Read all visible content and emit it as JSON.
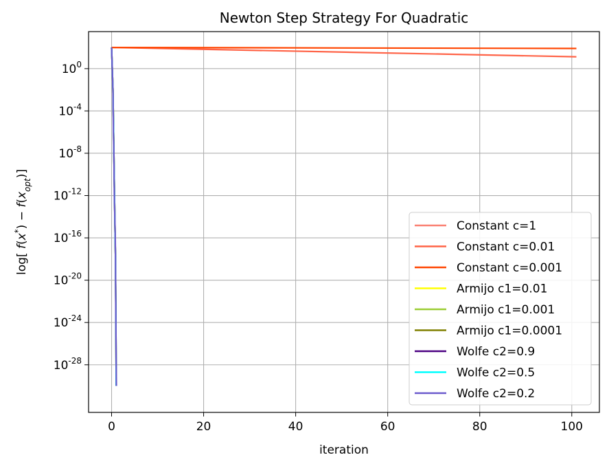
{
  "chart_data": {
    "type": "line",
    "title": "Newton Step Strategy For Quadratic",
    "xlabel": "iteration",
    "ylabel": "log[ f(x*) − f(x_opt)]",
    "yscale": "log",
    "xlim": [
      -5,
      106
    ],
    "ylim_log10": [
      -32.5,
      3.5
    ],
    "xticks": [
      0,
      20,
      40,
      60,
      80,
      100
    ],
    "yticks_exponent": [
      0,
      -4,
      -8,
      -12,
      -16,
      -20,
      -24,
      -28
    ],
    "y_tick_base": "10",
    "grid": true,
    "legend_position": "lower right",
    "series": [
      {
        "name": "Constant c=1",
        "color": "#fa8072",
        "points": [
          [
            0,
            2.0
          ],
          [
            1,
            2.0
          ]
        ]
      },
      {
        "name": "Constant c=0.01",
        "color": "#ff6347",
        "points": [
          [
            0,
            2.0
          ],
          [
            101,
            1.12
          ]
        ]
      },
      {
        "name": "Constant c=0.001",
        "color": "#ff4500",
        "points": [
          [
            0,
            2.0
          ],
          [
            101,
            1.91
          ]
        ]
      },
      {
        "name": "Armijo c1=0.01",
        "color": "#ffff00",
        "points": [
          [
            0,
            2.0
          ],
          [
            0.3,
            -2.0
          ],
          [
            0.5,
            -8.0
          ],
          [
            0.7,
            -14.0
          ],
          [
            0.85,
            -18.0
          ],
          [
            0.95,
            -25.0
          ],
          [
            1.0,
            -30.0
          ]
        ]
      },
      {
        "name": "Armijo c1=0.001",
        "color": "#9acd32",
        "points": [
          [
            0,
            2.0
          ],
          [
            0.3,
            -2.0
          ],
          [
            0.5,
            -8.0
          ],
          [
            0.7,
            -14.0
          ],
          [
            0.85,
            -18.0
          ],
          [
            0.95,
            -25.0
          ],
          [
            1.0,
            -30.0
          ]
        ]
      },
      {
        "name": "Armijo c1=0.0001",
        "color": "#808000",
        "points": [
          [
            0,
            2.0
          ],
          [
            0.3,
            -2.0
          ],
          [
            0.5,
            -8.0
          ],
          [
            0.7,
            -14.0
          ],
          [
            0.85,
            -18.0
          ],
          [
            0.95,
            -25.0
          ],
          [
            1.0,
            -30.0
          ]
        ]
      },
      {
        "name": "Wolfe c2=0.9",
        "color": "#4b0082",
        "points": [
          [
            0,
            2.0
          ],
          [
            0.3,
            -2.0
          ],
          [
            0.5,
            -8.0
          ],
          [
            0.7,
            -14.0
          ],
          [
            0.85,
            -18.0
          ],
          [
            0.95,
            -25.0
          ],
          [
            1.0,
            -30.0
          ]
        ]
      },
      {
        "name": "Wolfe c2=0.5",
        "color": "#00ffff",
        "points": [
          [
            0,
            2.0
          ],
          [
            0.3,
            -2.0
          ],
          [
            0.5,
            -8.0
          ],
          [
            0.7,
            -14.0
          ],
          [
            0.85,
            -18.0
          ],
          [
            0.95,
            -25.0
          ],
          [
            1.0,
            -30.0
          ]
        ]
      },
      {
        "name": "Wolfe c2=0.2",
        "color": "#6a5acd",
        "points": [
          [
            0,
            2.0
          ],
          [
            0.15,
            0.0
          ],
          [
            0.3,
            -2.0
          ],
          [
            0.4,
            -6.0
          ],
          [
            0.5,
            -8.0
          ],
          [
            0.6,
            -12.0
          ],
          [
            0.7,
            -14.0
          ],
          [
            0.8,
            -16.0
          ],
          [
            0.85,
            -18.0
          ],
          [
            0.9,
            -22.0
          ],
          [
            0.95,
            -25.0
          ],
          [
            1.0,
            -28.0
          ],
          [
            1.05,
            -30.0
          ]
        ]
      }
    ]
  }
}
